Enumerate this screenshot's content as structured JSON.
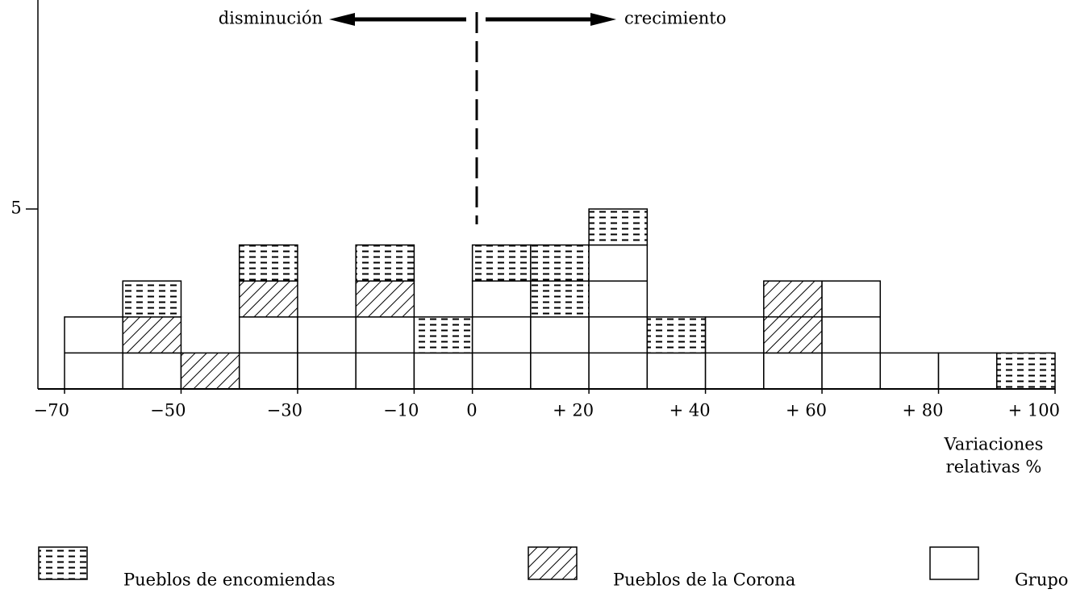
{
  "chart_data": {
    "type": "stacked_histogram",
    "bins": [
      -70,
      -60,
      -50,
      -40,
      -30,
      -20,
      -10,
      0,
      10,
      20,
      30,
      40,
      50,
      60,
      70,
      80,
      90,
      100
    ],
    "series": [
      {
        "name": "Grupo de pueblos",
        "color": "#ffffff",
        "pattern": "none",
        "values": [
          2,
          1,
          0,
          2,
          2,
          2,
          1,
          3,
          2,
          4,
          1,
          2,
          1,
          3,
          1,
          1,
          0
        ]
      },
      {
        "name": "Pueblos de la Corona",
        "color": "#000000",
        "pattern": "hatch",
        "values": [
          0,
          1,
          1,
          1,
          0,
          1,
          0,
          0,
          0,
          0,
          0,
          0,
          2,
          0,
          0,
          0,
          0
        ]
      },
      {
        "name": "Pueblos de encomiendas",
        "color": "#000000",
        "pattern": "dash",
        "values": [
          0,
          1,
          0,
          1,
          0,
          1,
          1,
          1,
          2,
          1,
          1,
          0,
          0,
          0,
          0,
          0,
          1
        ]
      }
    ],
    "xlim": [
      -70,
      100
    ],
    "xticks": [
      {
        "value": -70,
        "label": "−70"
      },
      {
        "value": -50,
        "label": "−50"
      },
      {
        "value": -30,
        "label": "−30"
      },
      {
        "value": -10,
        "label": "−10"
      },
      0,
      {
        "value": 20,
        "label": "+ 20"
      },
      {
        "value": 40,
        "label": "+ 40"
      },
      {
        "value": 60,
        "label": "+ 60"
      },
      {
        "value": 80,
        "label": "+ 80"
      },
      {
        "value": 100,
        "label": "+ 100"
      }
    ],
    "ylim": [
      0,
      5
    ],
    "yticks": [
      5
    ],
    "xlabel": [
      "Variaciones",
      "relativas %"
    ],
    "annotations": {
      "left": "disminución",
      "right": "crecimiento"
    }
  }
}
